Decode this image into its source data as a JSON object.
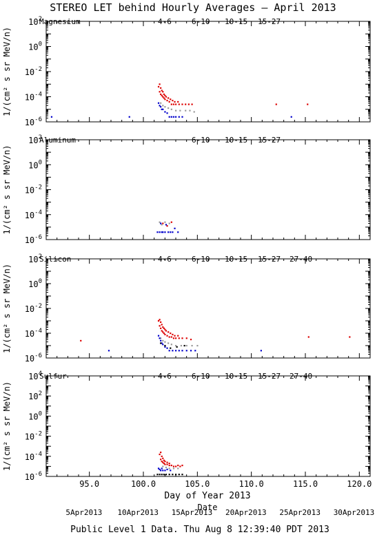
{
  "title": "STEREO LET behind Hourly Averages – April 2013",
  "ylabel": "1/(cm² s sr MeV/n)",
  "xlabel": "Day of Year 2013",
  "x_ticks": [
    "95.0",
    "100.0",
    "105.0",
    "110.0",
    "115.0",
    "120.0"
  ],
  "date_label": "Date",
  "date_ticks": [
    "5Apr2013",
    "10Apr2013",
    "15Apr2013",
    "20Apr2013",
    "25Apr2013",
    "30Apr2013"
  ],
  "footer": "Public Level 1 Data. Thu Aug  8 12:39:40 PDT 2013",
  "series_colors": {
    "4-6": "#dd0000",
    "6-10": "#dd0000",
    "10-15": "#999999",
    "15-27": "#0000cc",
    "27-40": "#000000"
  },
  "chart_data": [
    {
      "type": "scatter",
      "element": "Magnesium",
      "xlim": [
        91,
        121
      ],
      "ylim_log10": [
        -6,
        2
      ],
      "y_ticks": [
        {
          "m": "10",
          "e": "-6",
          "v": -6
        },
        {
          "m": "10",
          "e": "-4",
          "v": -4
        },
        {
          "m": "10",
          "e": "-2",
          "v": -2
        },
        {
          "m": "10",
          "e": "0",
          "v": 0
        },
        {
          "m": "10",
          "e": "2",
          "v": 2
        }
      ],
      "legend": [
        "4-6",
        "6-10",
        "10-15",
        "15-27"
      ],
      "series": [
        {
          "name": "4-6",
          "points": [
            [
              101.4,
              -3.2
            ],
            [
              101.5,
              -3.0
            ],
            [
              101.6,
              -3.3
            ],
            [
              101.7,
              -3.5
            ],
            [
              101.8,
              -3.6
            ],
            [
              101.9,
              -3.8
            ],
            [
              102.0,
              -3.9
            ],
            [
              102.1,
              -4.0
            ],
            [
              102.3,
              -4.1
            ],
            [
              102.5,
              -4.2
            ],
            [
              102.7,
              -4.3
            ],
            [
              102.9,
              -4.4
            ],
            [
              103.2,
              -4.4
            ]
          ]
        },
        {
          "name": "6-10",
          "points": [
            [
              101.5,
              -3.6
            ],
            [
              101.6,
              -3.8
            ],
            [
              101.7,
              -3.9
            ],
            [
              101.8,
              -4.0
            ],
            [
              101.9,
              -4.1
            ],
            [
              102.0,
              -4.2
            ],
            [
              102.2,
              -4.3
            ],
            [
              102.4,
              -4.4
            ],
            [
              102.6,
              -4.6
            ],
            [
              102.8,
              -4.6
            ],
            [
              103.0,
              -4.6
            ],
            [
              103.3,
              -4.6
            ],
            [
              103.6,
              -4.6
            ],
            [
              103.9,
              -4.6
            ],
            [
              104.2,
              -4.6
            ],
            [
              104.5,
              -4.6
            ],
            [
              112.3,
              -4.6
            ],
            [
              115.2,
              -4.6
            ]
          ]
        },
        {
          "name": "10-15",
          "points": [
            [
              101.6,
              -4.5
            ],
            [
              101.8,
              -4.7
            ],
            [
              102.0,
              -4.8
            ],
            [
              102.3,
              -4.9
            ],
            [
              102.6,
              -5.0
            ],
            [
              103.0,
              -5.1
            ],
            [
              103.4,
              -5.1
            ],
            [
              103.9,
              -5.1
            ],
            [
              104.3,
              -5.1
            ],
            [
              104.7,
              -5.2
            ]
          ]
        },
        {
          "name": "15-27",
          "points": [
            [
              91.5,
              -5.6
            ],
            [
              98.7,
              -5.6
            ],
            [
              101.4,
              -4.5
            ],
            [
              101.5,
              -4.7
            ],
            [
              101.6,
              -4.8
            ],
            [
              101.7,
              -5.0
            ],
            [
              101.8,
              -5.0
            ],
            [
              102.0,
              -5.2
            ],
            [
              102.2,
              -5.3
            ],
            [
              102.4,
              -5.6
            ],
            [
              102.6,
              -5.6
            ],
            [
              102.8,
              -5.6
            ],
            [
              103.0,
              -5.6
            ],
            [
              103.3,
              -5.6
            ],
            [
              103.6,
              -5.6
            ],
            [
              113.7,
              -5.6
            ]
          ]
        }
      ]
    },
    {
      "type": "scatter",
      "element": "Aluminum",
      "xlim": [
        91,
        121
      ],
      "ylim_log10": [
        -6,
        2
      ],
      "y_ticks": [
        {
          "m": "10",
          "e": "-6",
          "v": -6
        },
        {
          "m": "10",
          "e": "-4",
          "v": -4
        },
        {
          "m": "10",
          "e": "-2",
          "v": -2
        },
        {
          "m": "10",
          "e": "0",
          "v": 0
        },
        {
          "m": "10",
          "e": "2",
          "v": 2
        }
      ],
      "legend": [
        "6-10",
        "10-15",
        "15-27"
      ],
      "series": [
        {
          "name": "6-10",
          "points": [
            [
              101.8,
              -4.7
            ],
            [
              102.2,
              -4.9
            ],
            [
              102.6,
              -4.6
            ]
          ]
        },
        {
          "name": "10-15",
          "points": [
            [
              101.5,
              -4.6
            ],
            [
              101.7,
              -4.8
            ],
            [
              102.0,
              -4.6
            ],
            [
              102.4,
              -4.7
            ]
          ]
        },
        {
          "name": "15-27",
          "points": [
            [
              101.3,
              -5.4
            ],
            [
              101.5,
              -5.4
            ],
            [
              101.6,
              -4.7
            ],
            [
              101.7,
              -5.4
            ],
            [
              101.8,
              -5.4
            ],
            [
              102.0,
              -5.4
            ],
            [
              102.1,
              -4.8
            ],
            [
              102.3,
              -5.4
            ],
            [
              102.5,
              -5.4
            ],
            [
              102.7,
              -5.4
            ],
            [
              102.9,
              -5.1
            ],
            [
              103.2,
              -5.4
            ]
          ]
        }
      ]
    },
    {
      "type": "scatter",
      "element": "Silicon",
      "xlim": [
        91,
        121
      ],
      "ylim_log10": [
        -6,
        2
      ],
      "y_ticks": [
        {
          "m": "10",
          "e": "-6",
          "v": -6
        },
        {
          "m": "10",
          "e": "-4",
          "v": -4
        },
        {
          "m": "10",
          "e": "-2",
          "v": -2
        },
        {
          "m": "10",
          "e": "0",
          "v": 0
        },
        {
          "m": "10",
          "e": "2",
          "v": 2
        }
      ],
      "legend": [
        "4-6",
        "6-10",
        "10-15",
        "15-27",
        "27-40"
      ],
      "series": [
        {
          "name": "4-6",
          "points": [
            [
              101.4,
              -3.0
            ],
            [
              101.5,
              -2.9
            ],
            [
              101.6,
              -3.1
            ],
            [
              101.7,
              -3.3
            ],
            [
              101.8,
              -3.5
            ],
            [
              101.9,
              -3.6
            ],
            [
              102.0,
              -3.7
            ],
            [
              102.1,
              -3.8
            ],
            [
              102.3,
              -3.9
            ],
            [
              102.5,
              -4.0
            ],
            [
              102.7,
              -4.1
            ],
            [
              102.9,
              -4.2
            ],
            [
              103.2,
              -4.2
            ]
          ]
        },
        {
          "name": "6-10",
          "points": [
            [
              94.2,
              -4.6
            ],
            [
              101.5,
              -3.4
            ],
            [
              101.6,
              -3.6
            ],
            [
              101.7,
              -3.8
            ],
            [
              101.8,
              -3.9
            ],
            [
              101.9,
              -4.0
            ],
            [
              102.0,
              -4.1
            ],
            [
              102.2,
              -4.2
            ],
            [
              102.4,
              -4.3
            ],
            [
              102.6,
              -4.3
            ],
            [
              102.8,
              -4.4
            ],
            [
              103.0,
              -4.4
            ],
            [
              103.3,
              -4.4
            ],
            [
              103.6,
              -4.4
            ],
            [
              104.0,
              -4.4
            ],
            [
              104.4,
              -4.5
            ],
            [
              115.3,
              -4.3
            ],
            [
              119.1,
              -4.3
            ]
          ]
        },
        {
          "name": "10-15",
          "points": [
            [
              101.6,
              -4.4
            ],
            [
              101.8,
              -4.6
            ],
            [
              102.0,
              -4.7
            ],
            [
              102.3,
              -4.8
            ],
            [
              102.6,
              -4.9
            ],
            [
              103.0,
              -5.0
            ],
            [
              103.5,
              -5.0
            ],
            [
              104.0,
              -5.0
            ],
            [
              104.5,
              -5.0
            ],
            [
              105.0,
              -5.0
            ]
          ]
        },
        {
          "name": "15-27",
          "points": [
            [
              96.8,
              -5.4
            ],
            [
              101.4,
              -4.2
            ],
            [
              101.5,
              -4.4
            ],
            [
              101.6,
              -4.6
            ],
            [
              101.7,
              -4.8
            ],
            [
              101.8,
              -4.9
            ],
            [
              102.0,
              -5.1
            ],
            [
              102.2,
              -5.2
            ],
            [
              102.4,
              -5.4
            ],
            [
              102.7,
              -5.4
            ],
            [
              103.0,
              -5.4
            ],
            [
              103.3,
              -5.4
            ],
            [
              103.6,
              -5.4
            ],
            [
              104.0,
              -5.4
            ],
            [
              104.4,
              -5.4
            ],
            [
              104.8,
              -5.4
            ],
            [
              110.9,
              -5.4
            ]
          ]
        },
        {
          "name": "27-40",
          "points": [
            [
              101.6,
              -4.8
            ],
            [
              102.0,
              -5.0
            ],
            [
              102.5,
              -5.2
            ],
            [
              103.1,
              -5.1
            ],
            [
              103.8,
              -5.0
            ]
          ]
        }
      ]
    },
    {
      "type": "scatter",
      "element": "Sulfur",
      "xlim": [
        91,
        121
      ],
      "ylim_log10": [
        -6,
        4
      ],
      "y_ticks": [
        {
          "m": "10",
          "e": "-6",
          "v": -6
        },
        {
          "m": "10",
          "e": "-4",
          "v": -4
        },
        {
          "m": "10",
          "e": "-2",
          "v": -2
        },
        {
          "m": "10",
          "e": "0",
          "v": 0
        },
        {
          "m": "10",
          "e": "2",
          "v": 2
        },
        {
          "m": "10",
          "e": "4",
          "v": 4
        }
      ],
      "legend": [
        "4-6",
        "6-10",
        "10-15",
        "15-27",
        "27-40"
      ],
      "series": [
        {
          "name": "4-6",
          "points": [
            [
              101.5,
              -3.8
            ],
            [
              101.6,
              -3.6
            ],
            [
              101.7,
              -4.0
            ],
            [
              101.8,
              -4.2
            ],
            [
              101.9,
              -4.4
            ],
            [
              102.0,
              -4.5
            ],
            [
              102.2,
              -4.6
            ],
            [
              102.4,
              -4.7
            ]
          ]
        },
        {
          "name": "6-10",
          "points": [
            [
              101.6,
              -4.3
            ],
            [
              101.7,
              -4.5
            ],
            [
              101.8,
              -4.6
            ],
            [
              101.9,
              -4.7
            ],
            [
              102.0,
              -4.8
            ],
            [
              102.2,
              -4.8
            ],
            [
              102.4,
              -4.9
            ],
            [
              102.6,
              -4.9
            ],
            [
              102.8,
              -5.0
            ],
            [
              103.0,
              -5.0
            ],
            [
              103.2,
              -4.9
            ],
            [
              103.4,
              -5.0
            ],
            [
              103.6,
              -4.9
            ]
          ]
        },
        {
          "name": "10-15",
          "points": [
            [
              101.8,
              -5.0
            ],
            [
              102.1,
              -5.1
            ],
            [
              102.4,
              -5.2
            ],
            [
              102.8,
              -5.2
            ],
            [
              103.2,
              -5.2
            ]
          ]
        },
        {
          "name": "15-27",
          "points": [
            [
              101.4,
              -5.2
            ],
            [
              101.5,
              -5.3
            ],
            [
              101.6,
              -5.4
            ],
            [
              101.7,
              -5.2
            ],
            [
              101.8,
              -5.4
            ],
            [
              102.0,
              -5.4
            ],
            [
              102.2,
              -5.3
            ],
            [
              102.5,
              -5.4
            ]
          ]
        },
        {
          "name": "27-40",
          "points": [
            [
              101.3,
              -5.8
            ],
            [
              101.5,
              -5.8
            ],
            [
              101.7,
              -5.8
            ],
            [
              101.9,
              -5.8
            ],
            [
              102.1,
              -5.8
            ],
            [
              102.4,
              -5.8
            ],
            [
              102.7,
              -5.8
            ],
            [
              103.0,
              -5.8
            ],
            [
              103.3,
              -5.8
            ],
            [
              103.6,
              -5.8
            ]
          ]
        }
      ]
    }
  ]
}
